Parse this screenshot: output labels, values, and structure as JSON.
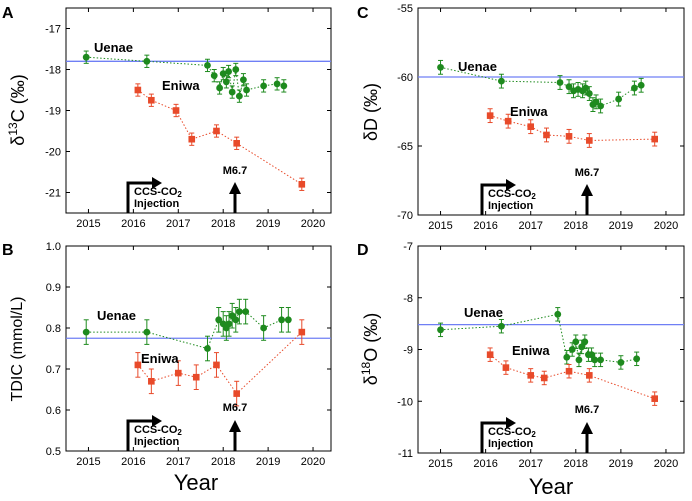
{
  "figure": {
    "xlabel": "Year"
  },
  "chart_data": [
    {
      "type": "scatter",
      "panel_label": "A",
      "ylabel_pre": "δ",
      "ylabel_sup": "13",
      "ylabel_post": "C (‰)",
      "x_ticks": [
        "2015",
        "2016",
        "2017",
        "2018",
        "2019",
        "2020"
      ],
      "y_ticks": [
        -17,
        -18,
        -19,
        -20,
        -21
      ],
      "xlim": [
        2014.5,
        2020.4
      ],
      "ylim": [
        -21.5,
        -16.5
      ],
      "reference_line": {
        "value": -17.8,
        "color": "#6f7ff5"
      },
      "series": [
        {
          "name": "Uenae",
          "color": "#1e8a1e",
          "marker": "circle",
          "x": [
            2014.95,
            2016.3,
            2017.65,
            2017.8,
            2017.92,
            2018.0,
            2018.07,
            2018.12,
            2018.2,
            2018.28,
            2018.36,
            2018.45,
            2018.52,
            2018.9,
            2019.2,
            2019.35
          ],
          "y": [
            -17.7,
            -17.8,
            -17.9,
            -18.15,
            -18.45,
            -18.1,
            -18.3,
            -18.05,
            -18.55,
            -18.0,
            -18.65,
            -18.25,
            -18.5,
            -18.4,
            -18.35,
            -18.4
          ],
          "err": [
            0.15,
            0.15,
            0.15,
            0.15,
            0.15,
            0.15,
            0.15,
            0.15,
            0.15,
            0.15,
            0.15,
            0.15,
            0.15,
            0.15,
            0.15,
            0.15
          ]
        },
        {
          "name": "Eniwa",
          "color": "#e84a2a",
          "marker": "square",
          "x": [
            2016.1,
            2016.4,
            2016.95,
            2017.3,
            2017.85,
            2018.3,
            2019.75
          ],
          "y": [
            -18.5,
            -18.75,
            -19.0,
            -19.7,
            -19.5,
            -19.8,
            -20.8
          ],
          "err": [
            0.15,
            0.15,
            0.15,
            0.15,
            0.15,
            0.15,
            0.15
          ]
        }
      ],
      "labels": {
        "Uenae": "Uenae",
        "Eniwa": "Eniwa"
      },
      "injection": {
        "line1": "CCS-CO",
        "sub": "2",
        "line2": "Injection",
        "x": 2016.15
      },
      "earthquake": {
        "label": "M6.7",
        "x": 2018.15
      }
    },
    {
      "type": "scatter",
      "panel_label": "C",
      "ylabel_pre": "δD (‰)",
      "ylabel_sup": "",
      "ylabel_post": "",
      "x_ticks": [
        "2015",
        "2016",
        "2017",
        "2018",
        "2019",
        "2020"
      ],
      "y_ticks": [
        -55,
        -60,
        -65,
        -70
      ],
      "xlim": [
        2014.5,
        2020.4
      ],
      "ylim": [
        -70,
        -55
      ],
      "reference_line": {
        "value": -60.0,
        "color": "#6f7ff5"
      },
      "series": [
        {
          "name": "Uenae",
          "color": "#1e8a1e",
          "marker": "circle",
          "x": [
            2015.0,
            2016.35,
            2017.65,
            2017.85,
            2017.95,
            2018.05,
            2018.15,
            2018.22,
            2018.3,
            2018.38,
            2018.45,
            2018.55,
            2018.95,
            2019.3,
            2019.45
          ],
          "y": [
            -59.3,
            -60.3,
            -60.4,
            -60.7,
            -61.0,
            -60.9,
            -61.0,
            -60.8,
            -61.2,
            -62.0,
            -61.8,
            -62.1,
            -61.6,
            -60.8,
            -60.6
          ],
          "err": [
            0.5,
            0.5,
            0.5,
            0.5,
            0.5,
            0.5,
            0.5,
            0.5,
            0.5,
            0.5,
            0.5,
            0.5,
            0.5,
            0.5,
            0.5
          ]
        },
        {
          "name": "Eniwa",
          "color": "#e84a2a",
          "marker": "square",
          "x": [
            2016.1,
            2016.5,
            2017.0,
            2017.35,
            2017.85,
            2018.3,
            2019.75
          ],
          "y": [
            -62.8,
            -63.2,
            -63.6,
            -64.2,
            -64.3,
            -64.6,
            -64.5
          ],
          "err": [
            0.5,
            0.5,
            0.5,
            0.5,
            0.5,
            0.5,
            0.5
          ]
        }
      ],
      "labels": {
        "Uenae": "Uenae",
        "Eniwa": "Eniwa"
      },
      "injection": {
        "line1": "CCS-CO",
        "sub": "2",
        "line2": "Injection",
        "x": 2016.15
      },
      "earthquake": {
        "label": "M6.7",
        "x": 2018.15
      }
    },
    {
      "type": "scatter",
      "panel_label": "B",
      "ylabel_pre": "TDIC (mmol/L)",
      "ylabel_sup": "",
      "ylabel_post": "",
      "x_ticks": [
        "2015",
        "2016",
        "2017",
        "2018",
        "2019",
        "2020"
      ],
      "y_ticks": [
        "1.0",
        "0.9",
        "0.8",
        "0.7",
        "0.6",
        "0.5"
      ],
      "xlim": [
        2014.5,
        2020.4
      ],
      "ylim": [
        0.5,
        1.0
      ],
      "reference_line": {
        "value": 0.775,
        "color": "#6f7ff5"
      },
      "series": [
        {
          "name": "Uenae",
          "color": "#1e8a1e",
          "marker": "circle",
          "x": [
            2014.95,
            2016.3,
            2017.65,
            2017.9,
            2018.0,
            2018.07,
            2018.13,
            2018.2,
            2018.28,
            2018.36,
            2018.5,
            2018.9,
            2019.3,
            2019.45
          ],
          "y": [
            0.79,
            0.79,
            0.75,
            0.82,
            0.81,
            0.8,
            0.81,
            0.83,
            0.82,
            0.84,
            0.84,
            0.8,
            0.82,
            0.82
          ],
          "err": [
            0.03,
            0.03,
            0.03,
            0.03,
            0.03,
            0.03,
            0.03,
            0.03,
            0.03,
            0.03,
            0.03,
            0.03,
            0.03,
            0.03
          ]
        },
        {
          "name": "Eniwa",
          "color": "#e84a2a",
          "marker": "square",
          "x": [
            2016.1,
            2016.4,
            2017.0,
            2017.4,
            2017.85,
            2018.3,
            2019.75
          ],
          "y": [
            0.71,
            0.67,
            0.69,
            0.68,
            0.71,
            0.64,
            0.79
          ],
          "err": [
            0.03,
            0.03,
            0.03,
            0.03,
            0.03,
            0.03,
            0.03
          ]
        }
      ],
      "labels": {
        "Uenae": "Uenae",
        "Eniwa": "Eniwa"
      },
      "injection": {
        "line1": "CCS-CO",
        "sub": "2",
        "line2": "Injection",
        "x": 2016.15
      },
      "earthquake": {
        "label": "M6.7",
        "x": 2018.15
      }
    },
    {
      "type": "scatter",
      "panel_label": "D",
      "ylabel_pre": "δ",
      "ylabel_sup": "18",
      "ylabel_post": "O (‰)",
      "x_ticks": [
        "2015",
        "2016",
        "2017",
        "2018",
        "2019",
        "2020"
      ],
      "y_ticks": [
        -7,
        -8,
        -9,
        -10,
        -11
      ],
      "xlim": [
        2014.5,
        2020.4
      ],
      "ylim": [
        -11,
        -7
      ],
      "reference_line": {
        "value": -8.52,
        "color": "#6f7ff5"
      },
      "series": [
        {
          "name": "Uenae",
          "color": "#1e8a1e",
          "marker": "circle",
          "x": [
            2015.0,
            2016.35,
            2017.6,
            2017.8,
            2017.92,
            2018.0,
            2018.07,
            2018.13,
            2018.2,
            2018.28,
            2018.35,
            2018.42,
            2018.55,
            2019.0,
            2019.35
          ],
          "y": [
            -8.62,
            -8.55,
            -8.32,
            -9.15,
            -9.0,
            -8.85,
            -9.2,
            -8.95,
            -8.85,
            -9.1,
            -9.1,
            -9.2,
            -9.2,
            -9.25,
            -9.18
          ],
          "err": [
            0.13,
            0.13,
            0.13,
            0.13,
            0.13,
            0.13,
            0.13,
            0.13,
            0.13,
            0.13,
            0.13,
            0.13,
            0.13,
            0.13,
            0.13
          ]
        },
        {
          "name": "Eniwa",
          "color": "#e84a2a",
          "marker": "square",
          "x": [
            2016.1,
            2016.45,
            2017.0,
            2017.3,
            2017.85,
            2018.3,
            2019.75
          ],
          "y": [
            -9.1,
            -9.35,
            -9.5,
            -9.55,
            -9.42,
            -9.5,
            -9.95
          ],
          "err": [
            0.13,
            0.13,
            0.13,
            0.13,
            0.13,
            0.13,
            0.13
          ]
        }
      ],
      "labels": {
        "Uenae": "Uenae",
        "Eniwa": "Eniwa"
      },
      "injection": {
        "line1": "CCS-CO",
        "sub": "2",
        "line2": "Injection",
        "x": 2016.15
      },
      "earthquake": {
        "label": "M6.7",
        "x": 2018.15
      }
    }
  ]
}
